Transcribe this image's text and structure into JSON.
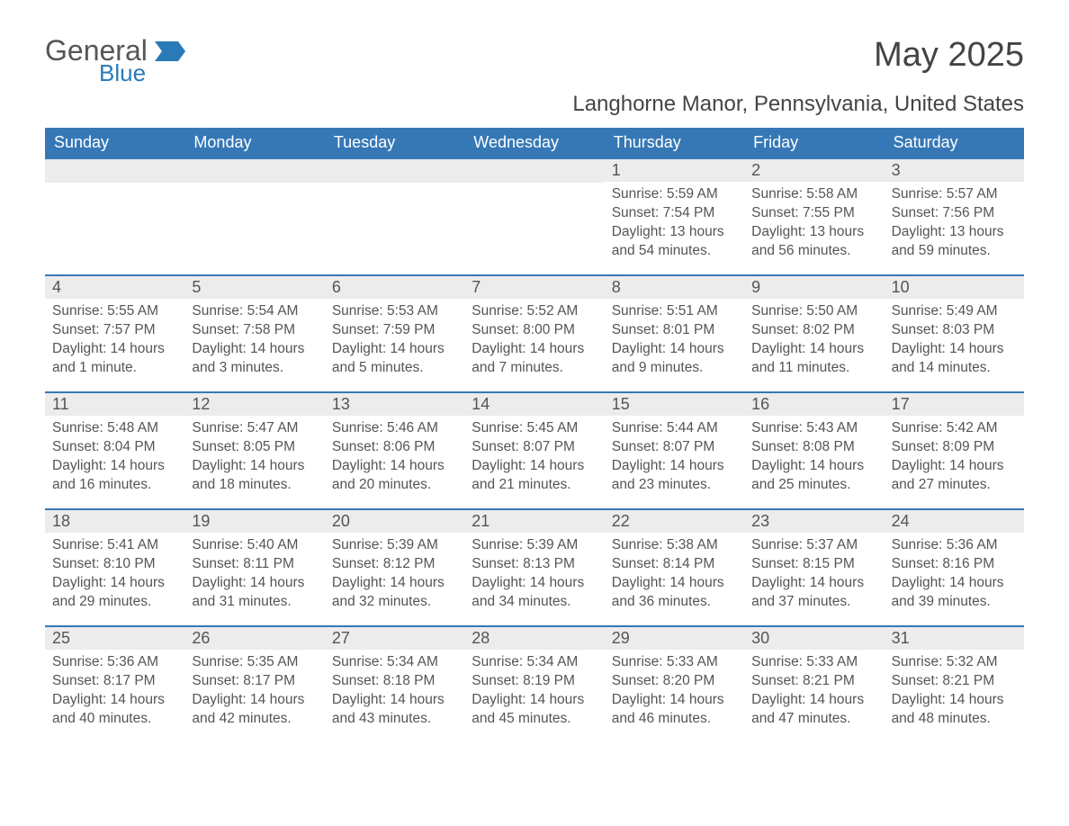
{
  "logo": {
    "general": "General",
    "blue": "Blue"
  },
  "month_title": "May 2025",
  "location": "Langhorne Manor, Pennsylvania, United States",
  "colors": {
    "header_bg": "#3678b6",
    "header_text": "#ffffff",
    "date_bg": "#ececec",
    "body_text": "#555555",
    "accent": "#2a7ab8"
  },
  "weekdays": [
    "Sunday",
    "Monday",
    "Tuesday",
    "Wednesday",
    "Thursday",
    "Friday",
    "Saturday"
  ],
  "weeks": [
    [
      {
        "date": "",
        "lines": []
      },
      {
        "date": "",
        "lines": []
      },
      {
        "date": "",
        "lines": []
      },
      {
        "date": "",
        "lines": []
      },
      {
        "date": "1",
        "lines": [
          "Sunrise: 5:59 AM",
          "Sunset: 7:54 PM",
          "Daylight: 13 hours and 54 minutes."
        ]
      },
      {
        "date": "2",
        "lines": [
          "Sunrise: 5:58 AM",
          "Sunset: 7:55 PM",
          "Daylight: 13 hours and 56 minutes."
        ]
      },
      {
        "date": "3",
        "lines": [
          "Sunrise: 5:57 AM",
          "Sunset: 7:56 PM",
          "Daylight: 13 hours and 59 minutes."
        ]
      }
    ],
    [
      {
        "date": "4",
        "lines": [
          "Sunrise: 5:55 AM",
          "Sunset: 7:57 PM",
          "Daylight: 14 hours and 1 minute."
        ]
      },
      {
        "date": "5",
        "lines": [
          "Sunrise: 5:54 AM",
          "Sunset: 7:58 PM",
          "Daylight: 14 hours and 3 minutes."
        ]
      },
      {
        "date": "6",
        "lines": [
          "Sunrise: 5:53 AM",
          "Sunset: 7:59 PM",
          "Daylight: 14 hours and 5 minutes."
        ]
      },
      {
        "date": "7",
        "lines": [
          "Sunrise: 5:52 AM",
          "Sunset: 8:00 PM",
          "Daylight: 14 hours and 7 minutes."
        ]
      },
      {
        "date": "8",
        "lines": [
          "Sunrise: 5:51 AM",
          "Sunset: 8:01 PM",
          "Daylight: 14 hours and 9 minutes."
        ]
      },
      {
        "date": "9",
        "lines": [
          "Sunrise: 5:50 AM",
          "Sunset: 8:02 PM",
          "Daylight: 14 hours and 11 minutes."
        ]
      },
      {
        "date": "10",
        "lines": [
          "Sunrise: 5:49 AM",
          "Sunset: 8:03 PM",
          "Daylight: 14 hours and 14 minutes."
        ]
      }
    ],
    [
      {
        "date": "11",
        "lines": [
          "Sunrise: 5:48 AM",
          "Sunset: 8:04 PM",
          "Daylight: 14 hours and 16 minutes."
        ]
      },
      {
        "date": "12",
        "lines": [
          "Sunrise: 5:47 AM",
          "Sunset: 8:05 PM",
          "Daylight: 14 hours and 18 minutes."
        ]
      },
      {
        "date": "13",
        "lines": [
          "Sunrise: 5:46 AM",
          "Sunset: 8:06 PM",
          "Daylight: 14 hours and 20 minutes."
        ]
      },
      {
        "date": "14",
        "lines": [
          "Sunrise: 5:45 AM",
          "Sunset: 8:07 PM",
          "Daylight: 14 hours and 21 minutes."
        ]
      },
      {
        "date": "15",
        "lines": [
          "Sunrise: 5:44 AM",
          "Sunset: 8:07 PM",
          "Daylight: 14 hours and 23 minutes."
        ]
      },
      {
        "date": "16",
        "lines": [
          "Sunrise: 5:43 AM",
          "Sunset: 8:08 PM",
          "Daylight: 14 hours and 25 minutes."
        ]
      },
      {
        "date": "17",
        "lines": [
          "Sunrise: 5:42 AM",
          "Sunset: 8:09 PM",
          "Daylight: 14 hours and 27 minutes."
        ]
      }
    ],
    [
      {
        "date": "18",
        "lines": [
          "Sunrise: 5:41 AM",
          "Sunset: 8:10 PM",
          "Daylight: 14 hours and 29 minutes."
        ]
      },
      {
        "date": "19",
        "lines": [
          "Sunrise: 5:40 AM",
          "Sunset: 8:11 PM",
          "Daylight: 14 hours and 31 minutes."
        ]
      },
      {
        "date": "20",
        "lines": [
          "Sunrise: 5:39 AM",
          "Sunset: 8:12 PM",
          "Daylight: 14 hours and 32 minutes."
        ]
      },
      {
        "date": "21",
        "lines": [
          "Sunrise: 5:39 AM",
          "Sunset: 8:13 PM",
          "Daylight: 14 hours and 34 minutes."
        ]
      },
      {
        "date": "22",
        "lines": [
          "Sunrise: 5:38 AM",
          "Sunset: 8:14 PM",
          "Daylight: 14 hours and 36 minutes."
        ]
      },
      {
        "date": "23",
        "lines": [
          "Sunrise: 5:37 AM",
          "Sunset: 8:15 PM",
          "Daylight: 14 hours and 37 minutes."
        ]
      },
      {
        "date": "24",
        "lines": [
          "Sunrise: 5:36 AM",
          "Sunset: 8:16 PM",
          "Daylight: 14 hours and 39 minutes."
        ]
      }
    ],
    [
      {
        "date": "25",
        "lines": [
          "Sunrise: 5:36 AM",
          "Sunset: 8:17 PM",
          "Daylight: 14 hours and 40 minutes."
        ]
      },
      {
        "date": "26",
        "lines": [
          "Sunrise: 5:35 AM",
          "Sunset: 8:17 PM",
          "Daylight: 14 hours and 42 minutes."
        ]
      },
      {
        "date": "27",
        "lines": [
          "Sunrise: 5:34 AM",
          "Sunset: 8:18 PM",
          "Daylight: 14 hours and 43 minutes."
        ]
      },
      {
        "date": "28",
        "lines": [
          "Sunrise: 5:34 AM",
          "Sunset: 8:19 PM",
          "Daylight: 14 hours and 45 minutes."
        ]
      },
      {
        "date": "29",
        "lines": [
          "Sunrise: 5:33 AM",
          "Sunset: 8:20 PM",
          "Daylight: 14 hours and 46 minutes."
        ]
      },
      {
        "date": "30",
        "lines": [
          "Sunrise: 5:33 AM",
          "Sunset: 8:21 PM",
          "Daylight: 14 hours and 47 minutes."
        ]
      },
      {
        "date": "31",
        "lines": [
          "Sunrise: 5:32 AM",
          "Sunset: 8:21 PM",
          "Daylight: 14 hours and 48 minutes."
        ]
      }
    ]
  ]
}
